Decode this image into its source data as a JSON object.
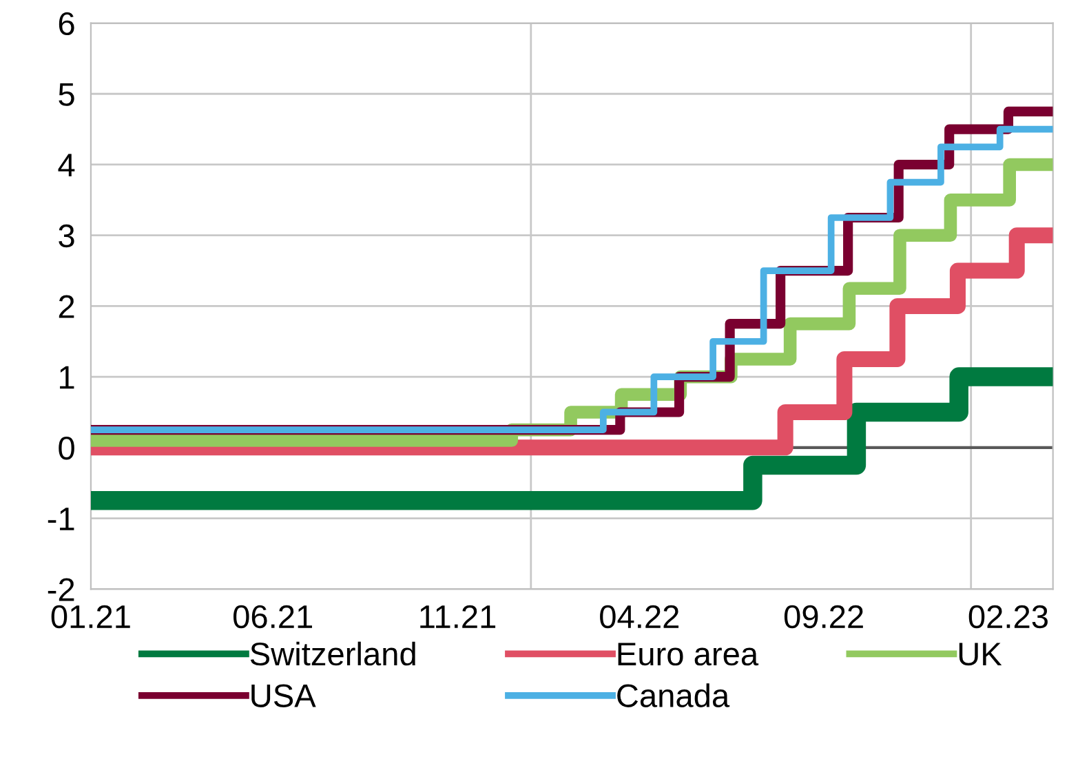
{
  "chart_data": {
    "type": "step",
    "xlim": [
      "2021-01-01",
      "2023-03-10"
    ],
    "ylim": [
      -2,
      6
    ],
    "yticks": [
      -2,
      -1,
      0,
      1,
      2,
      3,
      4,
      5,
      6
    ],
    "xticks": [
      {
        "value": "2021-01-01",
        "label": "01.21"
      },
      {
        "value": "2021-06-01",
        "label": "06.21"
      },
      {
        "value": "2021-11-01",
        "label": "11.21"
      },
      {
        "value": "2022-04-01",
        "label": "04.22"
      },
      {
        "value": "2022-09-01",
        "label": "09.22"
      },
      {
        "value": "2023-02-01",
        "label": "02.23"
      }
    ],
    "grid": "y",
    "legend": "bottom",
    "line_style": "solid",
    "marker": "none",
    "ref_lines": [
      {
        "axis": "x",
        "value": "2022-01-01",
        "label": null,
        "color": "#c8c8c8"
      },
      {
        "axis": "x",
        "value": "2023-01-01",
        "label": null,
        "color": "#c8c8c8"
      },
      {
        "axis": "y",
        "value": 0,
        "label": null,
        "color": "#595959"
      }
    ],
    "series": [
      {
        "name": "Switzerland",
        "color": "#007a40",
        "x": [
          "2021-01-01",
          "2022-07-04",
          "2022-09-28",
          "2022-12-22",
          "2023-03-10"
        ],
        "values": [
          -0.75,
          -0.25,
          0.5,
          1.0,
          1.0
        ]
      },
      {
        "name": "Euro area",
        "color": "#e04f64",
        "x": [
          "2021-01-01",
          "2022-07-31",
          "2022-09-18",
          "2022-11-01",
          "2022-12-21",
          "2023-02-08",
          "2023-03-10"
        ],
        "values": [
          0,
          0.5,
          1.25,
          2.0,
          2.5,
          3.0,
          3.0
        ]
      },
      {
        "name": "UK",
        "color": "#92c95f",
        "x": [
          "2021-01-01",
          "2021-12-16",
          "2022-02-03",
          "2022-03-17",
          "2022-05-05",
          "2022-06-16",
          "2022-08-04",
          "2022-09-22",
          "2022-11-03",
          "2022-12-15",
          "2023-02-02",
          "2023-03-10"
        ],
        "values": [
          0.1,
          0.25,
          0.5,
          0.75,
          1.0,
          1.25,
          1.75,
          2.25,
          3.0,
          3.5,
          4.0,
          4.0
        ]
      },
      {
        "name": "USA",
        "color": "#7a0030",
        "x": [
          "2021-01-01",
          "2022-03-16",
          "2022-05-04",
          "2022-06-15",
          "2022-07-27",
          "2022-09-21",
          "2022-11-02",
          "2022-12-14",
          "2023-02-01",
          "2023-03-10"
        ],
        "values": [
          0.25,
          0.5,
          1.0,
          1.75,
          2.5,
          3.25,
          4.0,
          4.5,
          4.75,
          4.75
        ]
      },
      {
        "name": "Canada",
        "color": "#4cb0e4",
        "x": [
          "2021-01-01",
          "2022-03-02",
          "2022-04-13",
          "2022-06-01",
          "2022-07-13",
          "2022-09-07",
          "2022-10-26",
          "2022-12-07",
          "2023-01-25",
          "2023-03-10"
        ],
        "values": [
          0.25,
          0.5,
          1.0,
          1.5,
          2.5,
          3.25,
          3.75,
          4.25,
          4.5,
          4.5
        ]
      }
    ]
  }
}
